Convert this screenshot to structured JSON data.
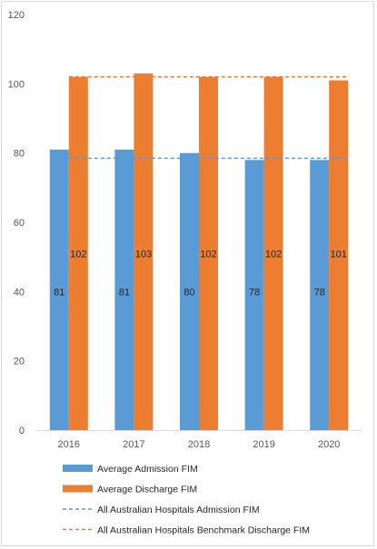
{
  "chart_data": {
    "type": "bar",
    "categories": [
      "2016",
      "2017",
      "2018",
      "2019",
      "2020"
    ],
    "series": [
      {
        "name": "Average Admission FIM",
        "kind": "bar",
        "color": "#5b9bd5",
        "values": [
          81,
          81,
          80,
          78,
          78
        ],
        "labels": [
          "81",
          "81",
          "80",
          "78",
          "78"
        ]
      },
      {
        "name": "Average Discharge FIM",
        "kind": "bar",
        "color": "#ed7d31",
        "values": [
          102,
          103,
          102,
          102,
          101
        ],
        "labels": [
          "102",
          "103",
          "102",
          "102",
          "101"
        ]
      },
      {
        "name": "All Australian Hospitals Admission FIM",
        "kind": "dashed-line",
        "color": "#5b9bd5",
        "values": [
          78.5,
          78.5,
          78.5,
          78.5,
          78.5
        ]
      },
      {
        "name": "All Australian Hospitals Benchmark Discharge FIM",
        "kind": "dashed-line",
        "color": "#ed7d31",
        "values": [
          102,
          102,
          102,
          102,
          102
        ]
      }
    ],
    "ylim": [
      0,
      120
    ],
    "yticks": [
      "0",
      "20",
      "40",
      "60",
      "80",
      "100",
      "120"
    ],
    "title": "",
    "xlabel": "",
    "ylabel": "",
    "grid": false,
    "legend_position": "bottom"
  }
}
